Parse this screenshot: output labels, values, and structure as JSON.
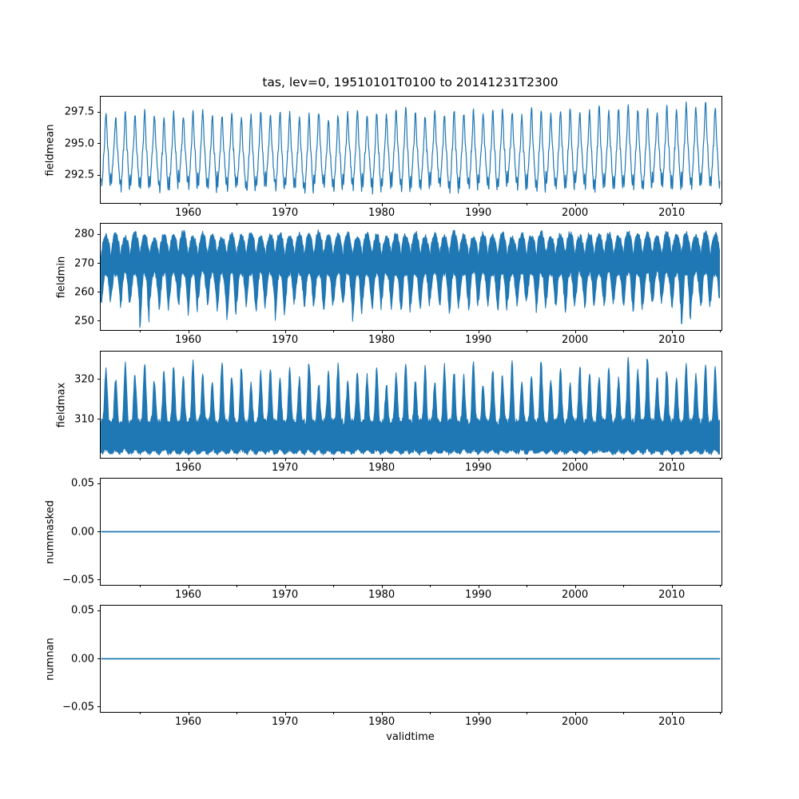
{
  "figure": {
    "title": "tas, lev=0, 19510101T0100 to 20141231T2300",
    "xlabel": "validtime",
    "line_color": "#1f77b4",
    "background": "#ffffff"
  },
  "chart_data": [
    {
      "type": "line",
      "name": "fieldmean",
      "ylabel": "fieldmean",
      "xlim": [
        1950.95,
        2015.15
      ],
      "xticks": [
        1960,
        1970,
        1980,
        1990,
        2000,
        2010
      ],
      "xtick_labels": [
        "1960",
        "1970",
        "1980",
        "1990",
        "2000",
        "2010"
      ],
      "minor_xticks": [
        1955,
        1965,
        1975,
        1985,
        1995,
        2005,
        2015
      ],
      "ylim": [
        290.3,
        298.7
      ],
      "yticks": [
        292.5,
        295.0,
        297.5
      ],
      "ytick_labels": [
        "292.5",
        "295.0",
        "297.5"
      ],
      "grid": false,
      "legend": false,
      "series": {
        "kind": "seasonal-line",
        "start_year": 1951,
        "period": "1 year",
        "noise": 0.4,
        "yearly_peak": [
          297.4,
          297.1,
          297.5,
          297.2,
          297.6,
          297.3,
          297.0,
          297.4,
          297.2,
          297.5,
          297.7,
          297.3,
          297.1,
          297.4,
          297.0,
          297.3,
          297.5,
          297.2,
          297.6,
          297.4,
          297.1,
          297.3,
          297.5,
          297.0,
          297.2,
          297.4,
          297.6,
          297.1,
          297.5,
          297.3,
          297.6,
          297.8,
          297.4,
          297.2,
          297.5,
          297.3,
          297.7,
          297.4,
          297.6,
          297.3,
          297.5,
          297.7,
          297.4,
          297.2,
          297.8,
          297.5,
          297.3,
          297.6,
          297.8,
          297.4,
          297.6,
          297.9,
          297.5,
          297.7,
          298.0,
          297.6,
          297.8,
          297.5,
          297.9,
          297.6,
          298.1,
          297.8,
          298.3,
          297.9
        ],
        "yearly_trough": [
          291.5,
          291.8,
          291.3,
          291.6,
          291.4,
          291.7,
          291.2,
          291.5,
          291.8,
          291.4,
          291.6,
          291.3,
          291.7,
          291.4,
          291.6,
          291.2,
          291.5,
          291.8,
          291.3,
          291.6,
          291.4,
          291.2,
          291.7,
          291.5,
          291.3,
          291.8,
          291.4,
          291.6,
          291.2,
          291.5,
          291.7,
          291.3,
          291.6,
          291.4,
          291.8,
          291.5,
          291.2,
          291.6,
          291.4,
          291.7,
          291.3,
          291.5,
          291.8,
          291.4,
          291.6,
          291.3,
          291.7,
          291.5,
          291.4,
          291.8,
          291.5,
          291.3,
          291.6,
          291.4,
          291.7,
          291.5,
          291.3,
          291.8,
          291.6,
          291.4,
          291.7,
          291.5,
          291.8,
          291.6
        ]
      }
    },
    {
      "type": "line",
      "name": "fieldmin",
      "ylabel": "fieldmin",
      "xlim": [
        1950.95,
        2015.15
      ],
      "xticks": [
        1960,
        1970,
        1980,
        1990,
        2000,
        2010
      ],
      "xtick_labels": [
        "1960",
        "1970",
        "1980",
        "1990",
        "2000",
        "2010"
      ],
      "minor_xticks": [
        1955,
        1965,
        1975,
        1985,
        1995,
        2005,
        2015
      ],
      "ylim": [
        246.9,
        283.7
      ],
      "yticks": [
        250,
        260,
        270,
        280
      ],
      "ytick_labels": [
        "250",
        "260",
        "270",
        "280"
      ],
      "grid": false,
      "legend": false,
      "series": {
        "kind": "band",
        "start_year": 1951,
        "upper_saddle": 271.5,
        "lower_base": 266.5,
        "upper_noise": 1.8,
        "lower_noise": 2.2,
        "yearly_upper_peak": [
          279.5,
          280.2,
          279.0,
          280.5,
          279.8,
          278.8,
          280.0,
          279.4,
          280.8,
          279.2,
          280.3,
          279.6,
          278.9,
          280.1,
          279.5,
          280.6,
          279.1,
          279.8,
          280.4,
          279.3,
          280.0,
          279.6,
          280.9,
          279.4,
          279.9,
          280.2,
          279.0,
          280.5,
          279.7,
          279.2,
          280.3,
          279.8,
          280.6,
          279.3,
          280.0,
          279.5,
          280.8,
          279.6,
          279.1,
          280.2,
          279.8,
          280.4,
          279.2,
          280.0,
          279.6,
          280.7,
          279.3,
          279.9,
          280.5,
          279.4,
          280.1,
          279.7,
          280.3,
          279.5,
          281.0,
          279.8,
          280.2,
          279.4,
          280.6,
          279.9,
          280.3,
          279.6,
          280.8,
          280.0
        ],
        "yearly_min": [
          256.0,
          258.5,
          255.0,
          257.5,
          248.5,
          256.5,
          254.0,
          257.0,
          255.5,
          253.0,
          258.0,
          256.2,
          254.5,
          250.5,
          257.2,
          255.8,
          253.5,
          256.8,
          251.0,
          255.2,
          257.8,
          254.8,
          256.4,
          253.8,
          257.0,
          255.4,
          250.8,
          256.6,
          254.2,
          257.4,
          255.0,
          253.2,
          256.0,
          254.6,
          257.6,
          255.6,
          252.8,
          256.2,
          254.4,
          257.0,
          255.8,
          253.4,
          256.8,
          255.2,
          257.2,
          254.0,
          256.4,
          255.6,
          253.6,
          257.0,
          255.4,
          256.6,
          254.8,
          257.4,
          255.0,
          253.8,
          256.2,
          255.8,
          257.6,
          254.4,
          248.8,
          256.0,
          254.6,
          256.8
        ]
      }
    },
    {
      "type": "line",
      "name": "fieldmax",
      "ylabel": "fieldmax",
      "xlim": [
        1950.95,
        2015.15
      ],
      "xticks": [
        1960,
        1970,
        1980,
        1990,
        2000,
        2010
      ],
      "xtick_labels": [
        "1960",
        "1970",
        "1980",
        "1990",
        "2000",
        "2010"
      ],
      "minor_xticks": [
        1955,
        1965,
        1975,
        1985,
        1995,
        2005,
        2015
      ],
      "ylim": [
        300.3,
        326.9
      ],
      "yticks": [
        310,
        320
      ],
      "ytick_labels": [
        "310",
        "320"
      ],
      "grid": false,
      "legend": false,
      "series": {
        "kind": "band-spike",
        "start_year": 1951,
        "upper_saddle": 309.3,
        "lower_base": 302.3,
        "upper_noise": 1.8,
        "lower_noise": 0.9,
        "yearly_peak": [
          322.5,
          320.0,
          323.5,
          321.0,
          324.0,
          319.5,
          322.0,
          323.0,
          320.5,
          324.5,
          321.5,
          319.0,
          323.8,
          320.8,
          322.8,
          318.5,
          321.8,
          323.2,
          319.8,
          322.4,
          320.2,
          324.2,
          318.8,
          321.4,
          323.6,
          319.4,
          322.2,
          320.6,
          323.0,
          318.6,
          321.2,
          324.4,
          320.0,
          322.6,
          319.2,
          323.4,
          321.6,
          320.4,
          324.0,
          318.9,
          322.0,
          320.8,
          323.8,
          319.6,
          321.0,
          324.6,
          320.2,
          322.4,
          319.0,
          323.2,
          321.4,
          320.6,
          322.8,
          319.8,
          324.8,
          321.8,
          325.6,
          320.4,
          322.2,
          319.4,
          323.6,
          321.0,
          324.2,
          322.6
        ]
      }
    },
    {
      "type": "line",
      "name": "nummasked",
      "ylabel": "nummasked",
      "xlim": [
        1950.95,
        2015.15
      ],
      "xticks": [
        1960,
        1970,
        1980,
        1990,
        2000,
        2010
      ],
      "xtick_labels": [
        "1960",
        "1970",
        "1980",
        "1990",
        "2000",
        "2010"
      ],
      "minor_xticks": [
        1955,
        1965,
        1975,
        1985,
        1995,
        2005,
        2015
      ],
      "ylim": [
        -0.0553,
        0.0553
      ],
      "yticks": [
        -0.05,
        0.0,
        0.05
      ],
      "ytick_labels": [
        "−0.05",
        "0.00",
        "0.05"
      ],
      "grid": false,
      "legend": false,
      "series": {
        "kind": "flat",
        "value": 0.0,
        "x_range": [
          1951,
          2015
        ]
      }
    },
    {
      "type": "line",
      "name": "numnan",
      "ylabel": "numnan",
      "xlim": [
        1950.95,
        2015.15
      ],
      "xticks": [
        1960,
        1970,
        1980,
        1990,
        2000,
        2010
      ],
      "xtick_labels": [
        "1960",
        "1970",
        "1980",
        "1990",
        "2000",
        "2010"
      ],
      "minor_xticks": [
        1955,
        1965,
        1975,
        1985,
        1995,
        2005,
        2015
      ],
      "ylim": [
        -0.0553,
        0.0553
      ],
      "yticks": [
        -0.05,
        0.0,
        0.05
      ],
      "ytick_labels": [
        "−0.05",
        "0.00",
        "0.05"
      ],
      "grid": false,
      "legend": false,
      "series": {
        "kind": "flat",
        "value": 0.0,
        "x_range": [
          1951,
          2015
        ]
      }
    }
  ]
}
